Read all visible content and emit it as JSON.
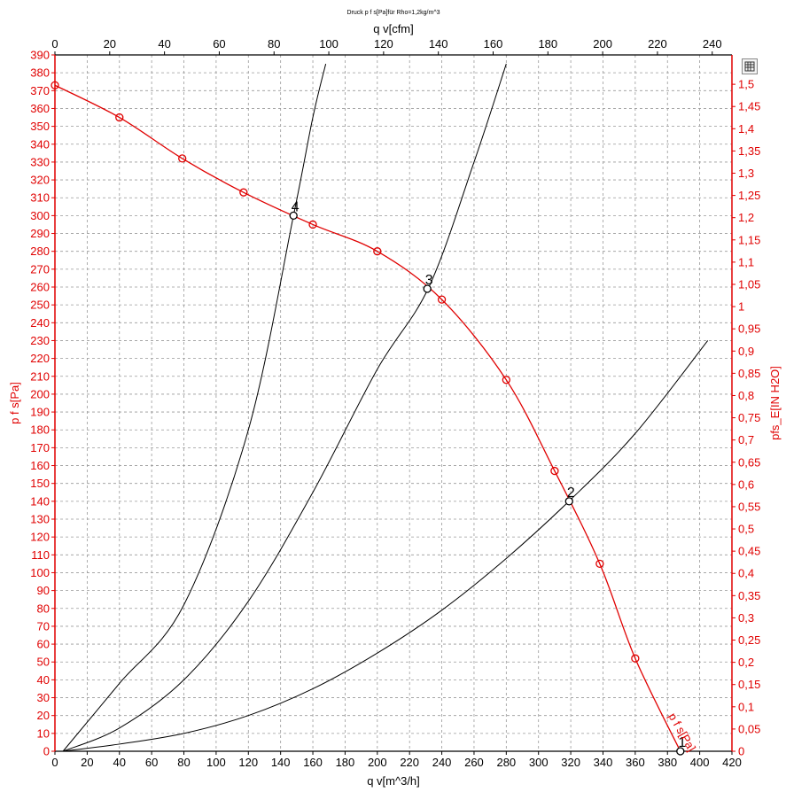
{
  "chart_data": {
    "type": "line",
    "title": "Druck p f s[Pa]für Rho=1,2kg/m^3",
    "xlabel": "q v[m^3/h]",
    "x2label": "q v[cfm]",
    "ylabel": "p f s[Pa]",
    "y2label": "pfs_E[IN H2O]",
    "xlim": [
      0,
      420
    ],
    "x2lim": [
      0,
      247.2
    ],
    "ylim": [
      0,
      390
    ],
    "y2lim": [
      0,
      1.566
    ],
    "grid": true,
    "x_ticks": [
      0,
      20,
      40,
      60,
      80,
      100,
      120,
      140,
      160,
      180,
      200,
      220,
      240,
      260,
      280,
      300,
      320,
      340,
      360,
      380,
      400,
      420
    ],
    "x2_ticks": [
      0,
      20,
      40,
      60,
      80,
      100,
      120,
      140,
      160,
      180,
      200,
      220,
      240
    ],
    "y_ticks": [
      0,
      10,
      20,
      30,
      40,
      50,
      60,
      70,
      80,
      90,
      100,
      110,
      120,
      130,
      140,
      150,
      160,
      170,
      180,
      190,
      200,
      210,
      220,
      230,
      240,
      250,
      260,
      270,
      280,
      290,
      300,
      310,
      320,
      330,
      340,
      350,
      360,
      370,
      380,
      390
    ],
    "y2_ticks": [
      "0",
      "0,05",
      "0,1",
      "0,15",
      "0,2",
      "0,25",
      "0,3",
      "0,35",
      "0,4",
      "0,45",
      "0,5",
      "0,55",
      "0,6",
      "0,65",
      "0,7",
      "0,75",
      "0,8",
      "0,85",
      "0,9",
      "0,95",
      "1",
      "1,05",
      "1,1",
      "1,15",
      "1,2",
      "1,25",
      "1,3",
      "1,35",
      "1,4",
      "1,45",
      "1,5"
    ],
    "fan_curve": {
      "name": "p f s[Pa]",
      "color": "#e00000",
      "x": [
        0,
        40,
        79,
        117,
        160,
        200,
        240,
        280,
        310,
        338,
        360,
        388
      ],
      "y": [
        373,
        355,
        332,
        313,
        295,
        280,
        253,
        208,
        157,
        105,
        52,
        0
      ],
      "markers": [
        [
          0,
          373
        ],
        [
          40,
          355
        ],
        [
          79,
          332
        ],
        [
          117,
          313
        ],
        [
          160,
          295
        ],
        [
          200,
          280
        ],
        [
          240,
          253
        ],
        [
          280,
          208
        ],
        [
          310,
          157
        ],
        [
          338,
          105
        ],
        [
          360,
          52
        ]
      ]
    },
    "system_curves": [
      {
        "color": "#000000",
        "x": [
          5,
          40,
          80,
          120,
          160,
          200,
          240,
          280,
          320,
          360,
          405
        ],
        "y": [
          0,
          4,
          10,
          20,
          35,
          55,
          79,
          108,
          141,
          178,
          230
        ]
      },
      {
        "color": "#000000",
        "x": [
          5,
          40,
          80,
          120,
          160,
          200,
          232,
          260,
          280
        ],
        "y": [
          0,
          13,
          40,
          84,
          145,
          214,
          260,
          330,
          385
        ]
      },
      {
        "color": "#000000",
        "x": [
          5,
          40,
          80,
          120,
          148,
          160,
          168
        ],
        "y": [
          0,
          38,
          82,
          180,
          300,
          355,
          385
        ]
      }
    ],
    "operating_points": [
      {
        "label": "1",
        "x": 388,
        "y": 0
      },
      {
        "label": "2",
        "x": 319,
        "y": 140
      },
      {
        "label": "3",
        "x": 231,
        "y": 259
      },
      {
        "label": "4",
        "x": 148,
        "y": 300
      }
    ],
    "curve_label": "p f s[Pa]"
  },
  "icons": {
    "menu": "chart-menu-icon"
  }
}
